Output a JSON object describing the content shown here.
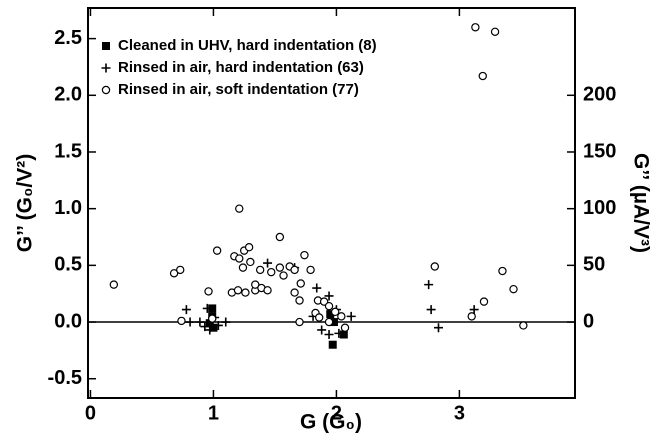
{
  "chart_data": {
    "type": "scatter",
    "xlabel": "G (G₀)",
    "ylabel": "G’’ (G₀/V²)",
    "y2label": "G’’ (µA/V³)",
    "xlim": [
      -0.02,
      3.94
    ],
    "ylim": [
      -0.67,
      2.77
    ],
    "y2lim": [
      -67,
      277
    ],
    "xticks": [
      0,
      1,
      2,
      3
    ],
    "yticks": [
      -0.5,
      {
        "value": 0,
        "label": "0.0"
      },
      0.5,
      {
        "value": 1,
        "label": "1.0"
      },
      1.5,
      {
        "value": 2,
        "label": "2.0"
      },
      2.5
    ],
    "y2ticks": [
      0,
      50,
      100,
      150,
      200
    ],
    "legend": "upper left",
    "series": [
      {
        "name": "Cleaned in UHV, hard indentation (8)",
        "color": "#000000",
        "marker": "square",
        "x": [
          0.99,
          0.99,
          0.97,
          1.0,
          1.95,
          1.98,
          1.97,
          2.06
        ],
        "values": [
          0.12,
          0.05,
          -0.01,
          -0.05,
          0.07,
          0.0,
          -0.2,
          -0.11
        ]
      },
      {
        "name": "Rinsed in air, hard indentation (63)",
        "color": "#000000",
        "marker": "plus",
        "x": [
          0.78,
          0.95,
          0.93,
          0.97,
          1.04,
          1.1,
          1.01,
          1.44,
          1.66,
          1.84,
          1.94,
          2.0,
          2.12,
          1.88,
          1.94,
          2.02,
          1.81,
          2.75,
          2.77,
          2.83,
          3.12,
          0.81,
          0.89
        ],
        "values": [
          0.11,
          0.12,
          -0.04,
          -0.07,
          -0.03,
          0.0,
          0.04,
          0.52,
          0.48,
          0.3,
          0.23,
          0.11,
          0.05,
          -0.07,
          -0.11,
          -0.1,
          0.05,
          0.33,
          0.11,
          -0.05,
          0.11,
          0.0,
          0.0
        ]
      },
      {
        "name": "Rinsed in air, soft indentation (77)",
        "color": "#000000",
        "marker": "circle",
        "x": [
          0.19,
          0.68,
          0.73,
          0.74,
          0.96,
          1.03,
          0.99,
          1.21,
          1.17,
          1.21,
          1.25,
          1.29,
          1.24,
          1.3,
          1.15,
          1.2,
          1.26,
          1.34,
          1.38,
          1.34,
          1.39,
          1.44,
          1.47,
          1.54,
          1.57,
          1.62,
          1.66,
          1.54,
          1.74,
          1.71,
          1.66,
          1.7,
          1.79,
          1.85,
          1.9,
          1.94,
          1.83,
          1.86,
          1.99,
          2.04,
          2.07,
          1.94,
          1.7,
          2.8,
          3.13,
          3.19,
          3.29,
          3.35,
          3.2,
          3.1,
          3.44,
          3.52
        ],
        "values": [
          0.33,
          0.43,
          0.46,
          0.01,
          0.27,
          0.63,
          0.03,
          1.0,
          0.58,
          0.56,
          0.63,
          0.66,
          0.48,
          0.53,
          0.26,
          0.28,
          0.26,
          0.28,
          0.46,
          0.33,
          0.3,
          0.28,
          0.44,
          0.48,
          0.41,
          0.49,
          0.46,
          0.75,
          0.59,
          0.34,
          0.26,
          0.19,
          0.46,
          0.19,
          0.18,
          0.14,
          0.08,
          0.04,
          0.09,
          0.05,
          -0.05,
          0.0,
          0.0,
          0.49,
          2.6,
          2.17,
          2.56,
          0.45,
          0.18,
          0.05,
          0.29,
          -0.03
        ]
      }
    ]
  }
}
